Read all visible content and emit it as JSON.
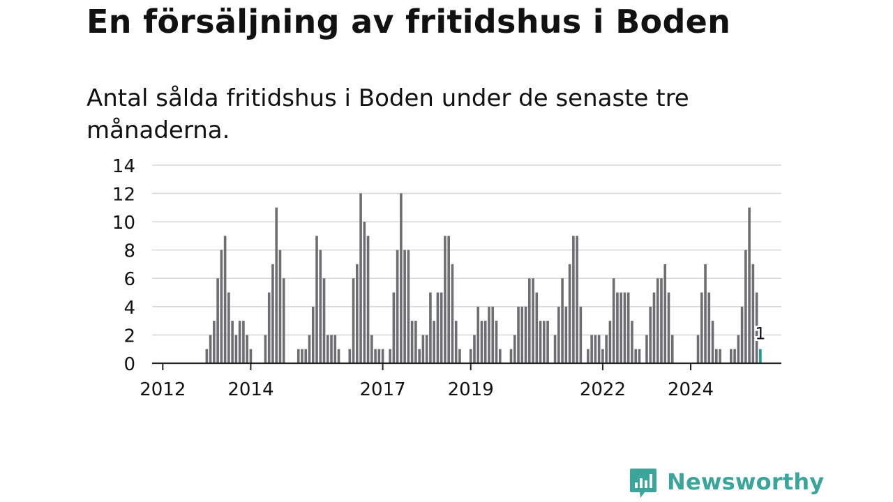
{
  "headline": "En försäljning av fritidshus i Boden",
  "subtitle": "Antal sålda fritidshus i Boden under de senaste tre månaderna.",
  "brand": {
    "name": "Newsworthy",
    "color": "#3aa59a"
  },
  "colors": {
    "bar": "#6d6d72",
    "highlight": "#1a9a8f",
    "grid": "#d9d9d9",
    "axis": "#222222",
    "text": "#111111"
  },
  "chart_data": {
    "type": "bar",
    "title": "",
    "xlabel": "",
    "ylabel": "",
    "ylim": [
      0,
      14
    ],
    "yticks": [
      0,
      2,
      4,
      6,
      8,
      10,
      12,
      14
    ],
    "xticks": [
      "2012",
      "2014",
      "2017",
      "2019",
      "2022",
      "2024"
    ],
    "grid": true,
    "highlight_label": "1",
    "series": [
      {
        "values": [
          0,
          0,
          0,
          0,
          0,
          0,
          0,
          0,
          0,
          0,
          0,
          0,
          1,
          2,
          3,
          6,
          8,
          9,
          5,
          3,
          2,
          3,
          3,
          2,
          1,
          0,
          0,
          0,
          2,
          5,
          7,
          11,
          8,
          6,
          0,
          0,
          0,
          1,
          1,
          1,
          2,
          4,
          9,
          8,
          6,
          2,
          2,
          2,
          1,
          0,
          0,
          1,
          6,
          7,
          12,
          10,
          9,
          2,
          1,
          1,
          1,
          0,
          1,
          5,
          8,
          12,
          8,
          8,
          3,
          3,
          1,
          2,
          2,
          5,
          3,
          5,
          5,
          9,
          9,
          7,
          3,
          1,
          0,
          0,
          1,
          2,
          4,
          3,
          3,
          4,
          4,
          3,
          1,
          0,
          0,
          1,
          2,
          4,
          4,
          4,
          6,
          6,
          5,
          3,
          3,
          3,
          0,
          2,
          4,
          6,
          4,
          7,
          9,
          9,
          4,
          0,
          1,
          2,
          2,
          2,
          1,
          2,
          3,
          6,
          5,
          5,
          5,
          5,
          3,
          1,
          1,
          0,
          2,
          4,
          5,
          6,
          6,
          7,
          5,
          2,
          0,
          0,
          0,
          0,
          0,
          0,
          2,
          5,
          7,
          5,
          3,
          1,
          1,
          0,
          0,
          1,
          1,
          2,
          4,
          8,
          11,
          7,
          5,
          1
        ]
      }
    ]
  }
}
